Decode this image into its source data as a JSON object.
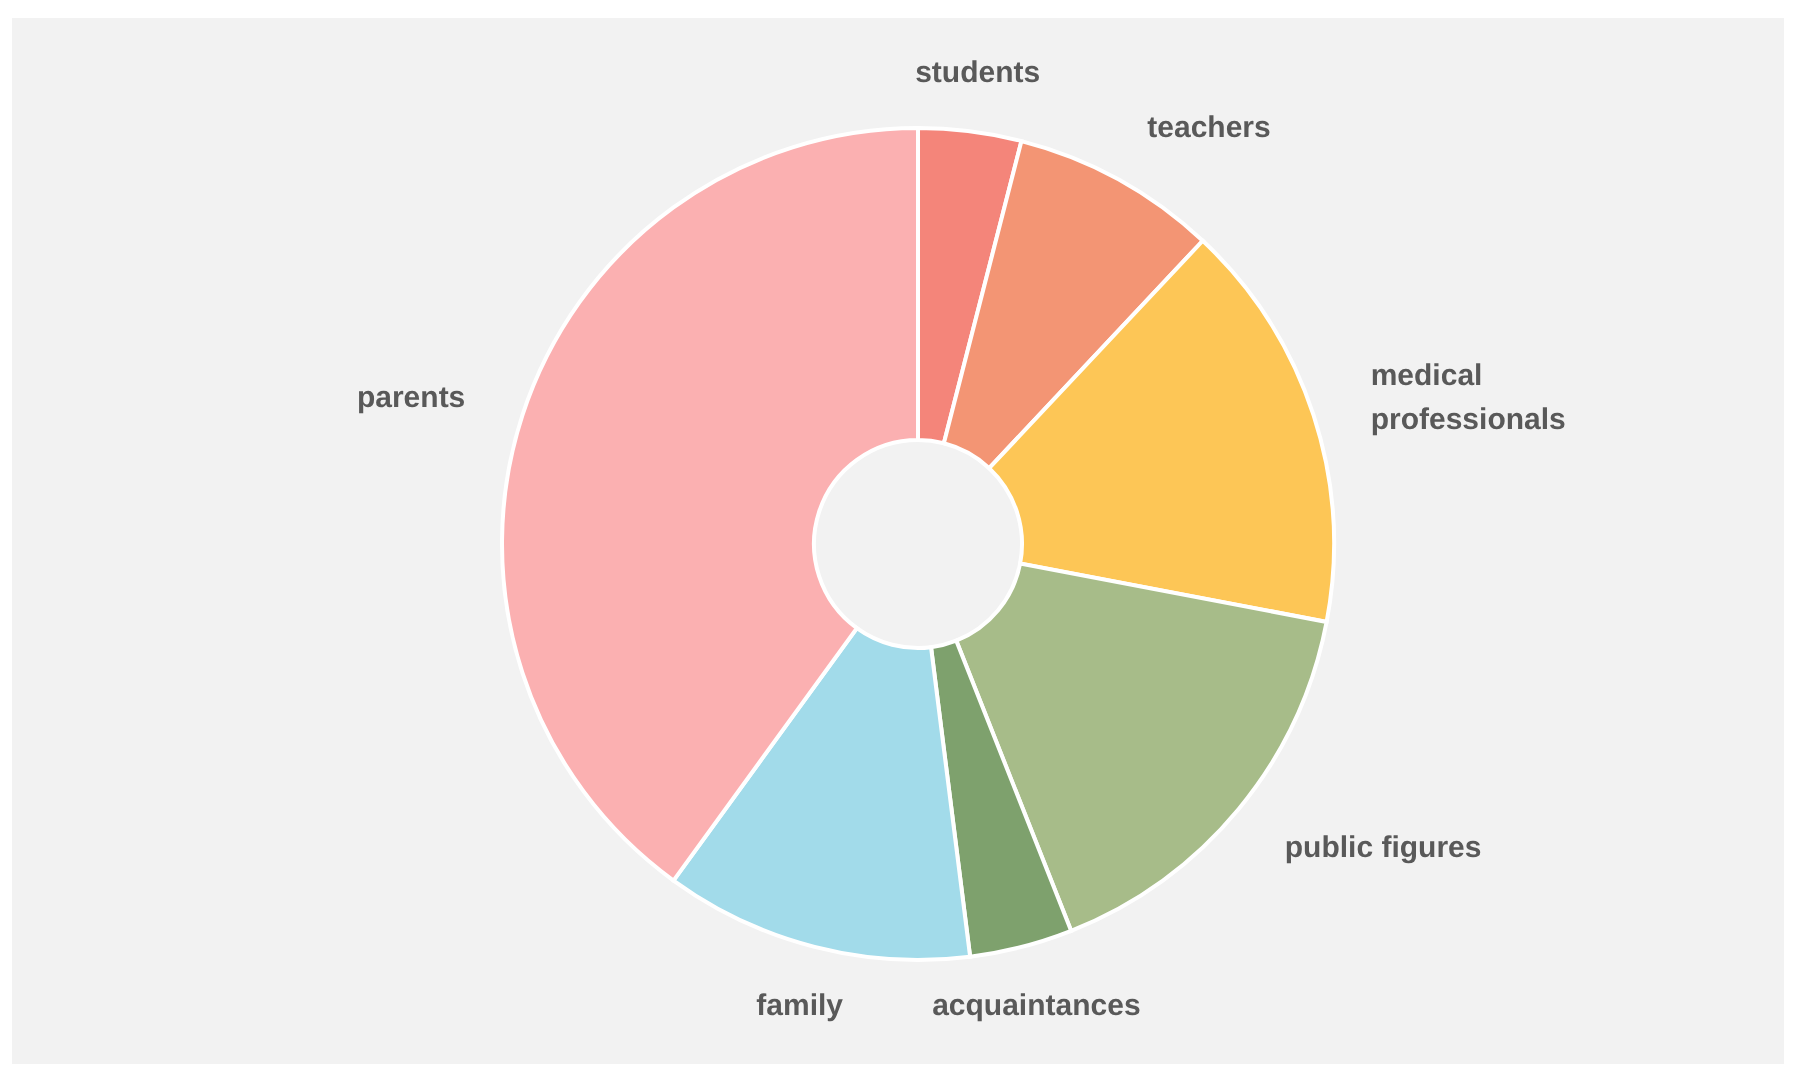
{
  "chart_data": {
    "type": "donut",
    "categories": [
      "students",
      "teachers",
      "medical professionals",
      "public figures",
      "acquaintances",
      "family",
      "parents"
    ],
    "values": [
      4,
      8,
      16,
      16,
      4,
      12,
      40
    ],
    "colors": [
      "#f4857a",
      "#f39574",
      "#fdc656",
      "#a7bc89",
      "#7ea16d",
      "#a2dbea",
      "#fbb0b1"
    ]
  }
}
